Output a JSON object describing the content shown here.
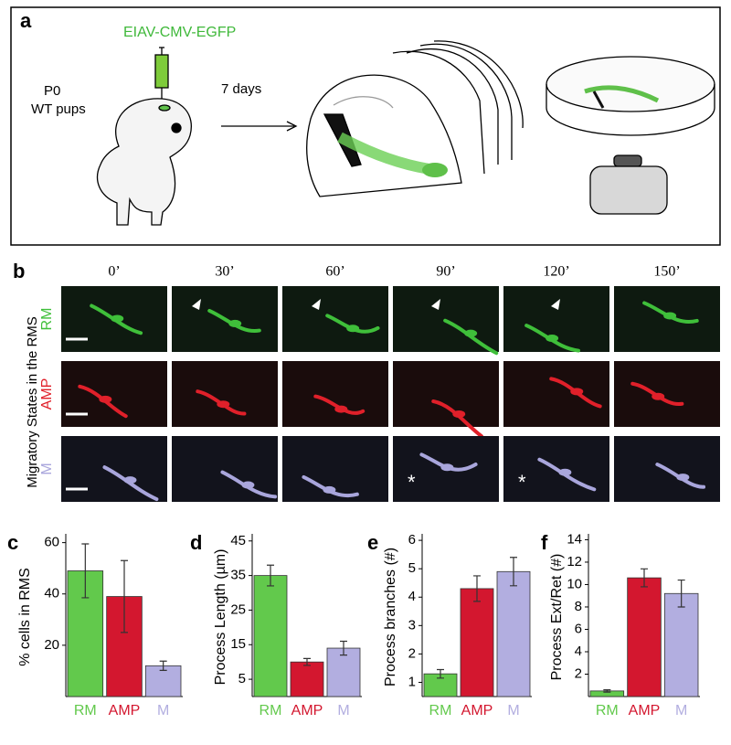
{
  "panel_labels": [
    "a",
    "b",
    "c",
    "d",
    "e",
    "f"
  ],
  "schematic": {
    "vector": "EIAV-CMV-EGFP",
    "age": "P0",
    "animals": "WT pups",
    "interval": "7 days"
  },
  "timelapse": {
    "times": [
      "0’",
      "30’",
      "60’",
      "90’",
      "120’",
      "150’"
    ],
    "rows": [
      "RM",
      "AMP",
      "M"
    ],
    "row_colors": [
      "#3fbf3a",
      "#e0202a",
      "#a9a6dc"
    ],
    "axis_label": "Migratory States in the RMS",
    "markers": [
      "*",
      "*"
    ]
  },
  "chart_data": [
    {
      "type": "bar",
      "ylabel": "% cells in RMS",
      "categories": [
        "RM",
        "AMP",
        "M"
      ],
      "values": [
        49,
        39,
        12
      ],
      "errors": [
        10.5,
        14,
        1.8
      ],
      "colors": [
        "#62c94c",
        "#d3172f",
        "#b2aee0"
      ],
      "ylim": [
        0,
        62
      ],
      "yticks": [
        20,
        40,
        60
      ]
    },
    {
      "type": "bar",
      "ylabel": "Process Length (µm)",
      "categories": [
        "RM",
        "AMP",
        "M"
      ],
      "values": [
        35,
        10,
        14
      ],
      "errors": [
        3,
        1,
        2
      ],
      "colors": [
        "#62c94c",
        "#d3172f",
        "#b2aee0"
      ],
      "ylim": [
        0,
        46
      ],
      "yticks": [
        5,
        15,
        25,
        35,
        45
      ]
    },
    {
      "type": "bar",
      "ylabel": "Process branches (#)",
      "categories": [
        "RM",
        "AMP",
        "M"
      ],
      "values": [
        1.3,
        4.3,
        4.9
      ],
      "errors": [
        0.15,
        0.45,
        0.5
      ],
      "colors": [
        "#62c94c",
        "#d3172f",
        "#b2aee0"
      ],
      "ylim": [
        0.5,
        6.1
      ],
      "yticks": [
        1,
        2,
        3,
        4,
        5,
        6
      ]
    },
    {
      "type": "bar",
      "ylabel": "Process Ext/Ret (#)",
      "categories": [
        "RM",
        "AMP",
        "M"
      ],
      "values": [
        0.5,
        10.6,
        9.2
      ],
      "errors": [
        0.1,
        0.8,
        1.2
      ],
      "colors": [
        "#62c94c",
        "#d3172f",
        "#b2aee0"
      ],
      "ylim": [
        0,
        14.2
      ],
      "yticks": [
        2,
        4,
        6,
        8,
        10,
        12,
        14
      ]
    }
  ]
}
